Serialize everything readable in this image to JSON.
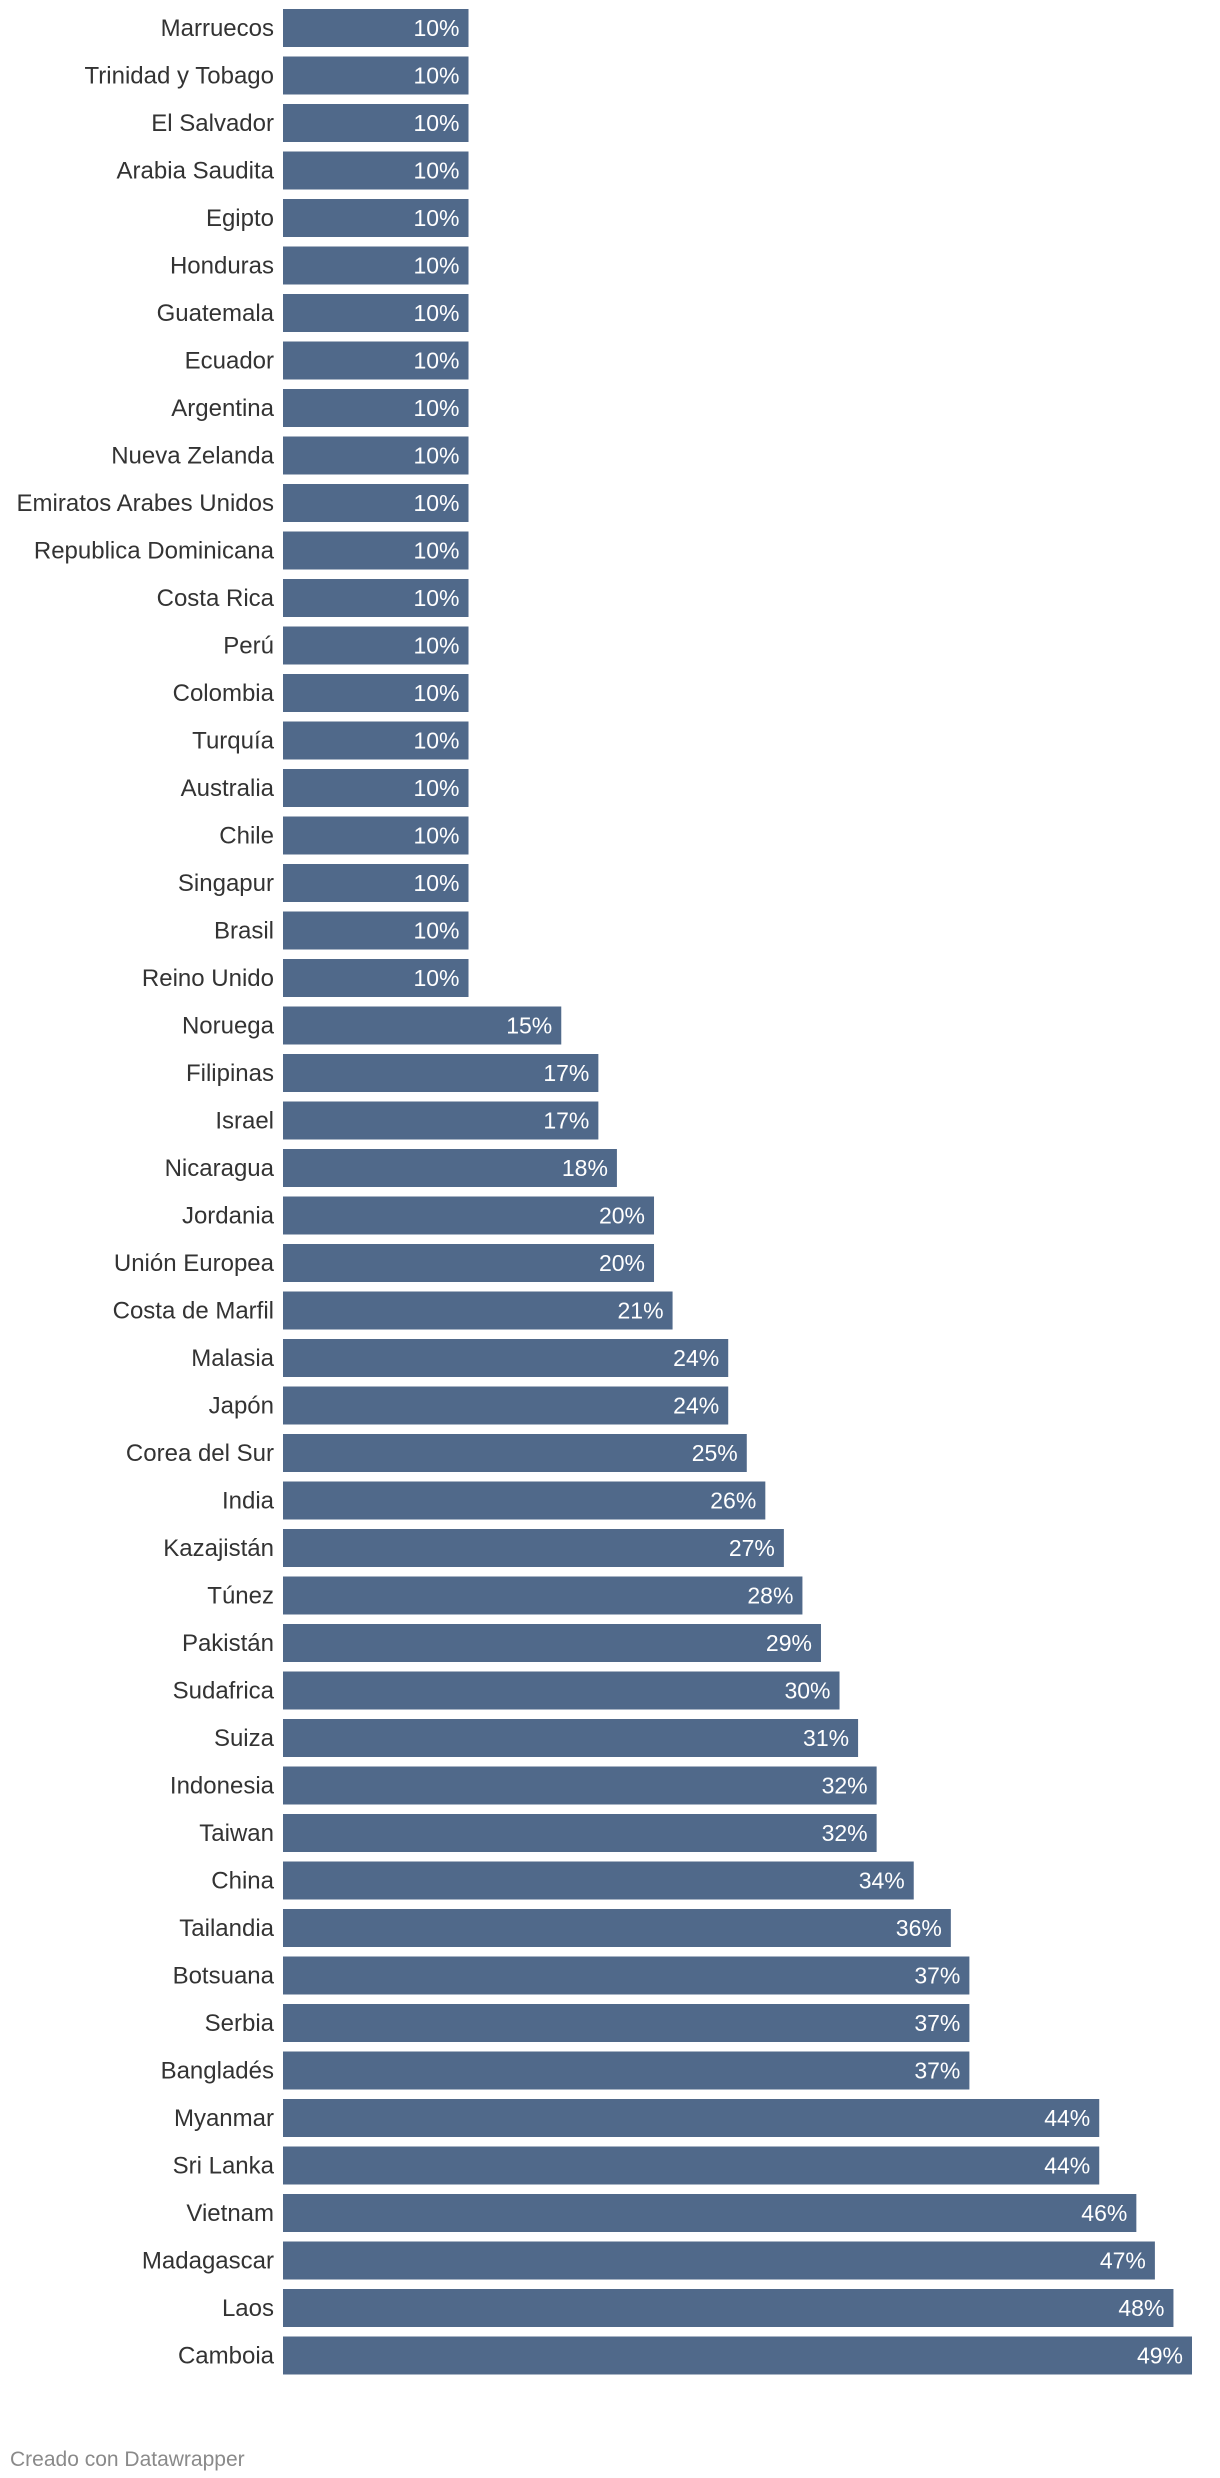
{
  "chart_data": {
    "type": "bar",
    "orientation": "horizontal",
    "categories": [
      "Marruecos",
      "Trinidad y Tobago",
      "El Salvador",
      "Arabia Saudita",
      "Egipto",
      "Honduras",
      "Guatemala",
      "Ecuador",
      "Argentina",
      "Nueva Zelanda",
      "Emiratos Arabes Unidos",
      "Republica Dominicana",
      "Costa Rica",
      "Perú",
      "Colombia",
      "Turquía",
      "Australia",
      "Chile",
      "Singapur",
      "Brasil",
      "Reino Unido",
      "Noruega",
      "Filipinas",
      "Israel",
      "Nicaragua",
      "Jordania",
      "Unión Europea",
      "Costa de Marfil",
      "Malasia",
      "Japón",
      "Corea del Sur",
      "India",
      "Kazajistán",
      "Túnez",
      "Pakistán",
      "Sudafrica",
      "Suiza",
      "Indonesia",
      "Taiwan",
      "China",
      "Tailandia",
      "Botsuana",
      "Serbia",
      "Bangladés",
      "Myanmar",
      "Sri Lanka",
      "Vietnam",
      "Madagascar",
      "Laos",
      "Camboia"
    ],
    "values": [
      10,
      10,
      10,
      10,
      10,
      10,
      10,
      10,
      10,
      10,
      10,
      10,
      10,
      10,
      10,
      10,
      10,
      10,
      10,
      10,
      10,
      15,
      17,
      17,
      18,
      20,
      20,
      21,
      24,
      24,
      25,
      26,
      27,
      28,
      29,
      30,
      31,
      32,
      32,
      34,
      36,
      37,
      37,
      37,
      44,
      44,
      46,
      47,
      48,
      49
    ],
    "value_labels": [
      "10%",
      "10%",
      "10%",
      "10%",
      "10%",
      "10%",
      "10%",
      "10%",
      "10%",
      "10%",
      "10%",
      "10%",
      "10%",
      "10%",
      "10%",
      "10%",
      "10%",
      "10%",
      "10%",
      "10%",
      "10%",
      "15%",
      "17%",
      "17%",
      "18%",
      "20%",
      "20%",
      "21%",
      "24%",
      "24%",
      "25%",
      "26%",
      "27%",
      "28%",
      "29%",
      "30%",
      "31%",
      "32%",
      "32%",
      "34%",
      "36%",
      "37%",
      "37%",
      "37%",
      "44%",
      "44%",
      "46%",
      "47%",
      "48%",
      "49%"
    ],
    "xlim": [
      0,
      49
    ],
    "bar_color": "#50698a",
    "grid": false,
    "title": "",
    "xlabel": "",
    "ylabel": ""
  },
  "footer": {
    "credit": "Creado con Datawrapper"
  }
}
